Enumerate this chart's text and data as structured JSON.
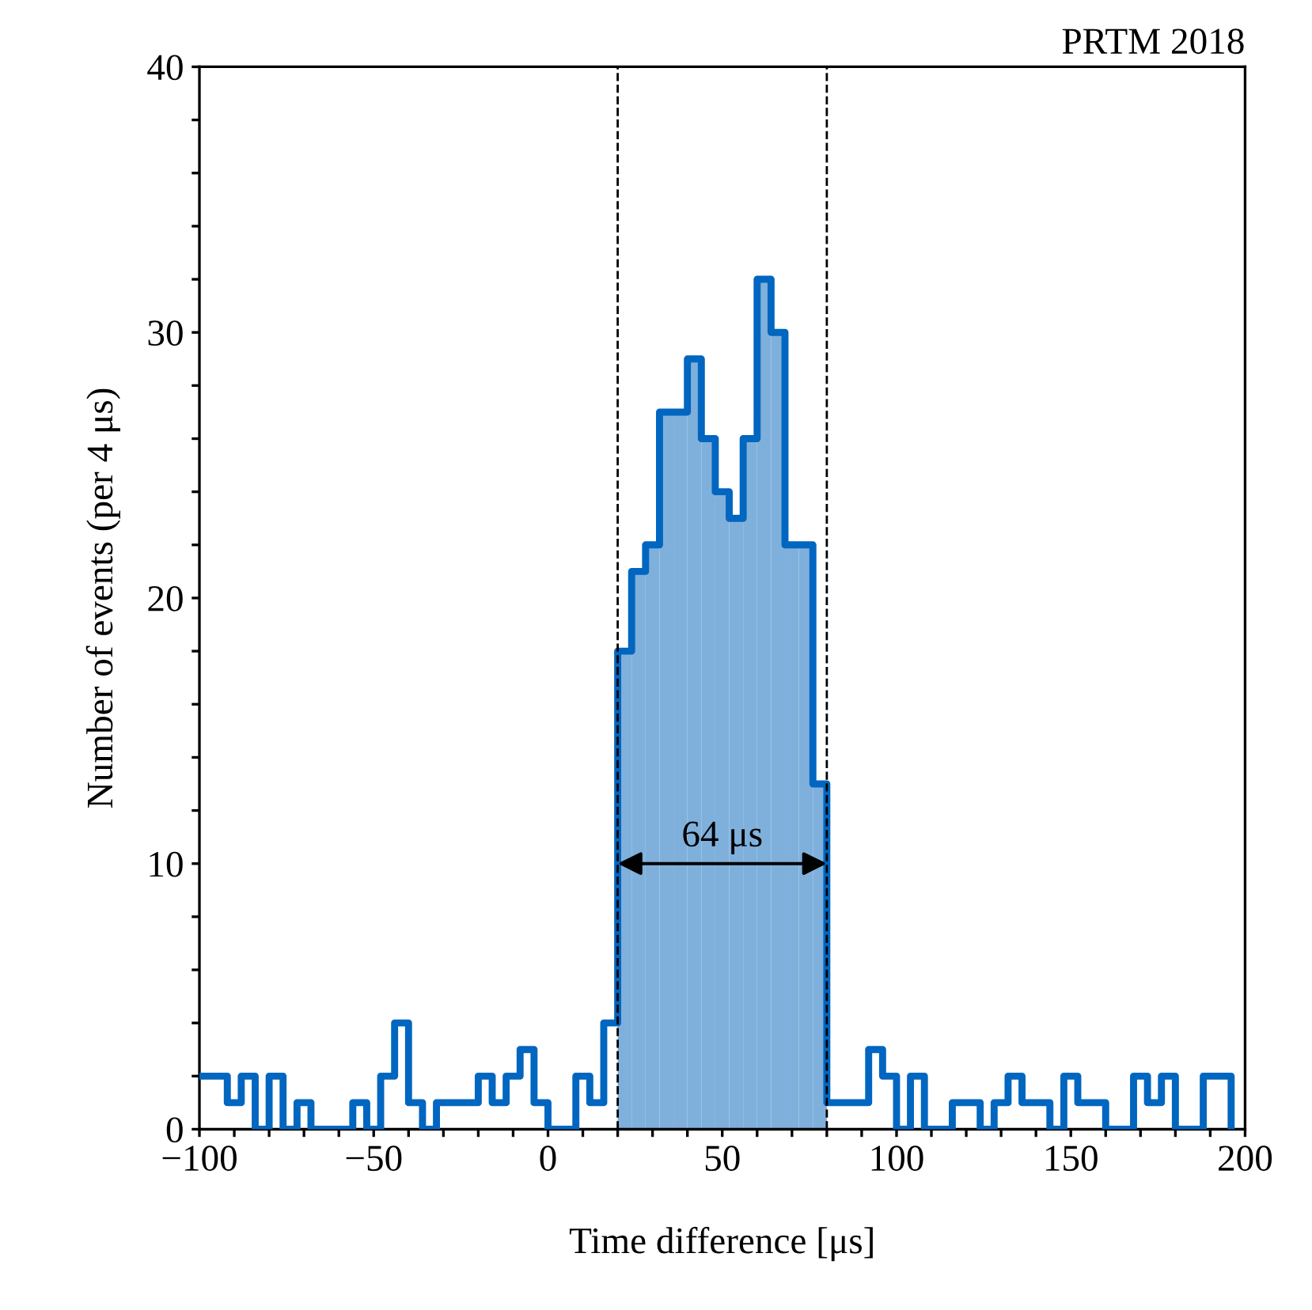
{
  "chart_data": {
    "type": "histogram",
    "xlabel": "Time difference [μs]",
    "ylabel": "Number of events (per 4 μs)",
    "bins": [
      -100,
      -96,
      -92,
      -88,
      -84,
      -80,
      -76,
      -72,
      -68,
      -64,
      -60,
      -56,
      -52,
      -48,
      -44,
      -40,
      -36,
      -32,
      -28,
      -24,
      -20,
      -16,
      -12,
      -8,
      -4,
      0,
      4,
      8,
      12,
      16,
      20,
      24,
      28,
      32,
      36,
      40,
      44,
      48,
      52,
      56,
      60,
      64,
      68,
      72,
      76,
      80,
      84,
      88,
      92,
      96,
      100,
      104,
      108,
      112,
      116,
      120,
      124,
      128,
      132,
      136,
      140,
      144,
      148,
      152,
      156,
      160,
      164,
      168,
      172,
      176,
      180,
      184,
      188,
      192,
      196,
      200
    ],
    "series": [
      {
        "color": "#7fb0dc",
        "values": [
          null,
          null,
          null,
          null,
          null,
          null,
          null,
          null,
          null,
          null,
          null,
          null,
          null,
          null,
          null,
          null,
          null,
          null,
          null,
          null,
          null,
          null,
          null,
          null,
          null,
          null,
          null,
          null,
          null,
          null,
          18,
          21,
          22,
          27,
          27,
          29,
          26,
          24,
          23,
          26,
          32,
          30,
          22,
          22,
          13,
          null,
          null,
          null,
          null,
          null,
          null,
          null,
          null,
          null,
          null,
          null,
          null,
          null,
          null,
          null,
          null,
          null,
          null,
          null,
          null,
          null,
          null,
          null,
          null,
          null,
          null,
          null,
          null,
          null,
          null
        ]
      },
      {
        "type": "step",
        "color": "#0066c0",
        "x": [
          -100,
          -96,
          -92,
          -88,
          -84,
          -80,
          -76,
          -72,
          -68,
          -64,
          -60,
          -56,
          -52,
          -48,
          -44,
          -40,
          -36,
          -32,
          -28,
          -24,
          -20,
          -16,
          -12,
          -8,
          -4,
          0,
          4,
          8,
          12,
          16,
          20,
          24,
          28,
          32,
          36,
          40,
          44,
          48,
          52,
          56,
          60,
          64,
          68,
          72,
          76,
          80,
          84,
          88,
          92,
          96,
          100,
          104,
          108,
          112,
          116,
          120,
          124,
          128,
          132,
          136,
          140,
          144,
          148,
          152,
          156,
          160,
          164,
          168,
          172,
          176,
          180,
          184,
          188,
          192,
          196
        ],
        "values": [
          2,
          2,
          1,
          2,
          0,
          2,
          0,
          1,
          0,
          0,
          0,
          1,
          0,
          2,
          4,
          1,
          0,
          1,
          1,
          1,
          2,
          1,
          2,
          3,
          1,
          0,
          0,
          2,
          1,
          4,
          18,
          21,
          22,
          27,
          27,
          29,
          26,
          24,
          23,
          26,
          32,
          30,
          22,
          22,
          13,
          1,
          1,
          1,
          3,
          2,
          0,
          2,
          0,
          0,
          1,
          1,
          0,
          1,
          2,
          1,
          1,
          0,
          2,
          1,
          1,
          0,
          0,
          2,
          1,
          2,
          0,
          0,
          2,
          2,
          0
        ]
      }
    ],
    "xlim": [
      -100,
      200
    ],
    "xticks": [
      -100,
      {
        "value": -90,
        "label": null
      },
      {
        "value": -80,
        "label": null
      },
      {
        "value": -70,
        "label": null
      },
      {
        "value": -60,
        "label": null
      },
      -50,
      {
        "value": -40,
        "label": null
      },
      {
        "value": -30,
        "label": null
      },
      {
        "value": -20,
        "label": null
      },
      {
        "value": -10,
        "label": null
      },
      0,
      {
        "value": 10,
        "label": null
      },
      {
        "value": 20,
        "label": null
      },
      {
        "value": 30,
        "label": null
      },
      {
        "value": 40,
        "label": null
      },
      50,
      {
        "value": 60,
        "label": null
      },
      {
        "value": 70,
        "label": null
      },
      {
        "value": 80,
        "label": null
      },
      {
        "value": 90,
        "label": null
      },
      100,
      {
        "value": 110,
        "label": null
      },
      {
        "value": 120,
        "label": null
      },
      {
        "value": 130,
        "label": null
      },
      {
        "value": 140,
        "label": null
      },
      150,
      {
        "value": 160,
        "label": null
      },
      {
        "value": 170,
        "label": null
      },
      {
        "value": 180,
        "label": null
      },
      {
        "value": 190,
        "label": null
      },
      200
    ],
    "ylim": [
      0,
      40
    ],
    "yticks": [
      0,
      {
        "value": 2,
        "label": null
      },
      {
        "value": 4,
        "label": null
      },
      {
        "value": 6,
        "label": null
      },
      {
        "value": 8,
        "label": null
      },
      10,
      {
        "value": 12,
        "label": null
      },
      {
        "value": 14,
        "label": null
      },
      {
        "value": 16,
        "label": null
      },
      {
        "value": 18,
        "label": null
      },
      20,
      {
        "value": 22,
        "label": null
      },
      {
        "value": 24,
        "label": null
      },
      {
        "value": 26,
        "label": null
      },
      {
        "value": 28,
        "label": null
      },
      30,
      {
        "value": 32,
        "label": null
      },
      {
        "value": 34,
        "label": null
      },
      {
        "value": 36,
        "label": null
      },
      {
        "value": 38,
        "label": null
      },
      40
    ],
    "ref_lines": [
      {
        "axis": "x",
        "value": 20,
        "color": "#000000",
        "line_style": "dashed"
      },
      {
        "axis": "x",
        "value": 80,
        "color": "#000000",
        "line_style": "dashed"
      }
    ],
    "annotations": [
      {
        "text": "64 μs",
        "x": 50,
        "y": 10
      },
      "PRTM 2018"
    ],
    "grid": false,
    "legend": false
  }
}
